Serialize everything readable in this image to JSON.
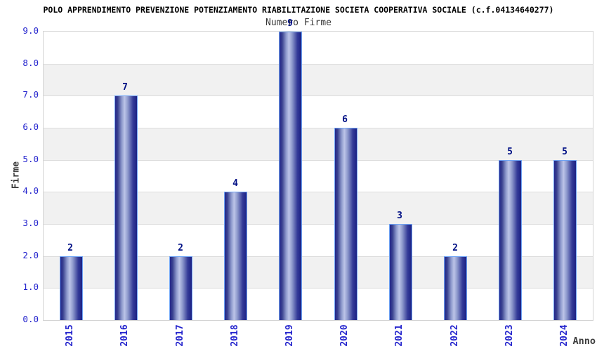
{
  "chart_data": {
    "type": "bar",
    "title": "POLO APPRENDIMENTO PREVENZIONE POTENZIAMENTO RIABILITAZIONE SOCIETA COOPERATIVA SOCIALE (c.f.04134640277)",
    "subtitle": "Numero Firme",
    "categories": [
      "2015",
      "2016",
      "2017",
      "2018",
      "2019",
      "2020",
      "2021",
      "2022",
      "2023",
      "2024"
    ],
    "values": [
      2,
      7,
      2,
      4,
      9,
      6,
      3,
      2,
      5,
      5
    ],
    "value_labels": [
      "2",
      "7",
      "2",
      "4",
      "9",
      "6",
      "3",
      "2",
      "5",
      "5"
    ],
    "xlabel": "Anno",
    "ylabel": "Firme",
    "ylim": [
      0,
      9
    ],
    "ytick_step": 1,
    "yticks": [
      "0.0",
      "1.0",
      "2.0",
      "3.0",
      "4.0",
      "5.0",
      "6.0",
      "7.0",
      "8.0",
      "9.0"
    ],
    "grid": "horizontal gridlines with alternating white/gray unit bands",
    "legend": "none",
    "colors": {
      "bar_edge_dark": "#23278b",
      "bar_mid": "#8d99cc",
      "bar_highlight": "#bcc4e8",
      "bar_border": "#6fa4f5",
      "band_gray": "#f1f1f1",
      "band_white": "#ffffff",
      "grid_line": "#dcdcdc",
      "tick_label_blue": "#2424cd",
      "value_label_navy": "#001085",
      "title_black": "#000000",
      "subtitle_gray": "#383838",
      "axis_title_gray": "#3d3d3d"
    }
  }
}
